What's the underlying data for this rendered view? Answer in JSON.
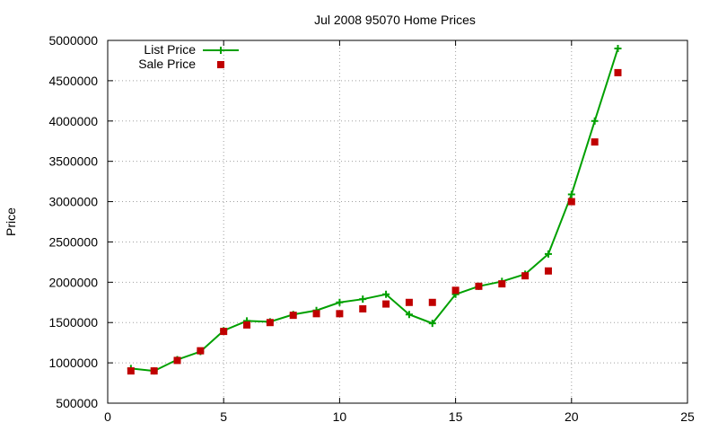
{
  "chart_data": {
    "type": "line",
    "title": "Jul 2008 95070 Home Prices",
    "xlabel": "",
    "ylabel": "Price",
    "xlim": [
      0,
      25
    ],
    "ylim": [
      500000,
      5000000
    ],
    "x_ticks": [
      0,
      5,
      10,
      15,
      20,
      25
    ],
    "y_ticks": [
      500000,
      1000000,
      1500000,
      2000000,
      2500000,
      3000000,
      3500000,
      4000000,
      4500000,
      5000000
    ],
    "grid": true,
    "legend_position": "top-left",
    "series": [
      {
        "name": "List Price",
        "style": "line-plus",
        "color": "#00a000",
        "points": [
          [
            1,
            930000
          ],
          [
            2,
            900000
          ],
          [
            3,
            1040000
          ],
          [
            4,
            1140000
          ],
          [
            5,
            1400000
          ],
          [
            6,
            1520000
          ],
          [
            7,
            1510000
          ],
          [
            8,
            1600000
          ],
          [
            9,
            1650000
          ],
          [
            10,
            1750000
          ],
          [
            11,
            1790000
          ],
          [
            12,
            1850000
          ],
          [
            13,
            1600000
          ],
          [
            14,
            1490000
          ],
          [
            15,
            1850000
          ],
          [
            16,
            1950000
          ],
          [
            17,
            2010000
          ],
          [
            18,
            2100000
          ],
          [
            19,
            2350000
          ],
          [
            20,
            3090000
          ],
          [
            21,
            4000000
          ],
          [
            22,
            4900000
          ]
        ]
      },
      {
        "name": "Sale Price",
        "style": "square-points",
        "color": "#c00000",
        "points": [
          [
            1,
            900000
          ],
          [
            2,
            900000
          ],
          [
            3,
            1030000
          ],
          [
            4,
            1150000
          ],
          [
            5,
            1390000
          ],
          [
            6,
            1470000
          ],
          [
            7,
            1500000
          ],
          [
            8,
            1590000
          ],
          [
            9,
            1610000
          ],
          [
            10,
            1610000
          ],
          [
            11,
            1670000
          ],
          [
            12,
            1730000
          ],
          [
            13,
            1750000
          ],
          [
            14,
            1750000
          ],
          [
            15,
            1900000
          ],
          [
            16,
            1950000
          ],
          [
            17,
            1980000
          ],
          [
            18,
            2080000
          ],
          [
            19,
            2140000
          ],
          [
            20,
            3000000
          ],
          [
            21,
            3740000
          ],
          [
            22,
            4600000
          ]
        ]
      }
    ]
  }
}
